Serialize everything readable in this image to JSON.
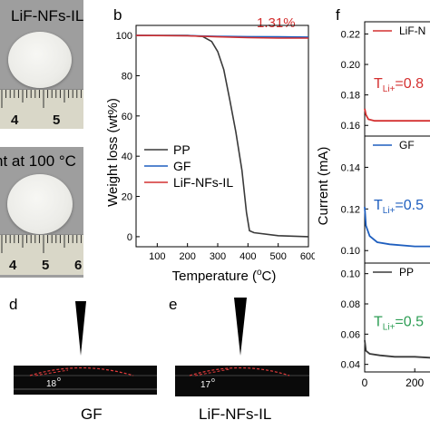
{
  "photos": {
    "top_label": "LiF-NFs-IL",
    "bottom_label": "nt at 100 °C",
    "ruler_numbers": [
      "4",
      "5"
    ],
    "ruler_numbers_bottom": [
      "4",
      "5",
      "6"
    ]
  },
  "contact_angle": {
    "d": {
      "letter": "d",
      "angle": "18",
      "angle_unit": "o",
      "label": "GF"
    },
    "e": {
      "letter": "e",
      "angle": "17",
      "angle_unit": "o",
      "label": "LiF-NFs-IL"
    }
  },
  "colors": {
    "pp": "#3a3a3a",
    "gf": "#1f5fbf",
    "lif": "#d43030",
    "green": "#2e9e55"
  },
  "chart_data": [
    {
      "type": "line",
      "panel_letter": "b",
      "annotation": "1.31%",
      "xlabel": "Temperature (",
      "xlabel_sup": "o",
      "xlabel_end": "C)",
      "ylabel": "Weight loss (wt%)",
      "xlim": [
        30,
        600
      ],
      "ylim": [
        -5,
        105
      ],
      "x_ticks": [
        100,
        200,
        300,
        400,
        500,
        600
      ],
      "y_ticks": [
        0,
        20,
        40,
        60,
        80,
        100
      ],
      "legend_position": "center-left",
      "series": [
        {
          "name": "PP",
          "color": "#3a3a3a",
          "x": [
            30,
            200,
            250,
            280,
            300,
            320,
            340,
            360,
            380,
            395,
            405,
            420,
            500,
            600
          ],
          "y": [
            100,
            100,
            99.5,
            97,
            92,
            83,
            68,
            52,
            33,
            12,
            3,
            2,
            0.5,
            0
          ]
        },
        {
          "name": "GF",
          "color": "#1f5fbf",
          "x": [
            30,
            200,
            300,
            400,
            500,
            600
          ],
          "y": [
            100,
            99.9,
            99.6,
            99.4,
            99.3,
            99.2
          ]
        },
        {
          "name": "LiF-NFs-IL",
          "color": "#d43030",
          "x": [
            30,
            200,
            300,
            400,
            500,
            600
          ],
          "y": [
            100,
            99.8,
            99.3,
            98.9,
            98.7,
            98.69
          ]
        }
      ]
    },
    {
      "type": "line",
      "panel_letter": "f",
      "ylabel": "Current (mA)",
      "x_ticks": [
        0,
        200
      ],
      "subplots": [
        {
          "name": "LiF-N",
          "color": "#d43030",
          "y_ticks": [
            0.16,
            0.18,
            0.2,
            0.22
          ],
          "ylim": [
            0.153,
            0.228
          ],
          "t_label": "T",
          "t_sub": "Li+",
          "t_value": "=0.8",
          "x": [
            0,
            5,
            15,
            40,
            80,
            150,
            250,
            300
          ],
          "y": [
            0.171,
            0.167,
            0.164,
            0.163,
            0.163,
            0.163,
            0.163,
            0.163
          ]
        },
        {
          "name": "GF",
          "color": "#1f5fbf",
          "y_ticks": [
            0.1,
            0.12,
            0.14
          ],
          "ylim": [
            0.094,
            0.155
          ],
          "t_label": "T",
          "t_sub": "Li+",
          "t_value": "=0.5",
          "x": [
            0,
            5,
            20,
            50,
            100,
            200,
            300
          ],
          "y": [
            0.121,
            0.112,
            0.107,
            0.104,
            0.103,
            0.102,
            0.102
          ]
        },
        {
          "name": "PP",
          "color": "#3a3a3a",
          "y_ticks": [
            0.04,
            0.06,
            0.08,
            0.1
          ],
          "ylim": [
            0.035,
            0.107
          ],
          "t_label": "T",
          "t_sub": "Li+",
          "t_value": "=0.5",
          "t_color": "#2e9e55",
          "x": [
            0,
            5,
            20,
            60,
            120,
            200,
            300
          ],
          "y": [
            0.056,
            0.049,
            0.047,
            0.046,
            0.045,
            0.045,
            0.044
          ]
        }
      ]
    }
  ]
}
